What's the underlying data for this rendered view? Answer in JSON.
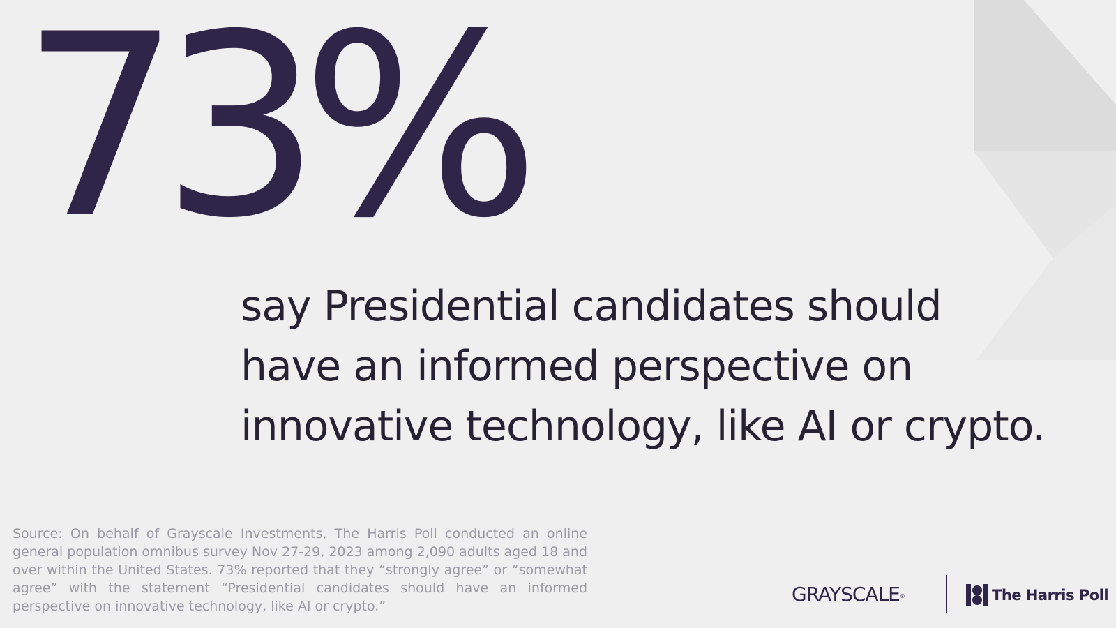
{
  "stat": {
    "value": "73%"
  },
  "headline": {
    "lines": [
      "say Presidential candidates should",
      "have an informed perspective on",
      "innovative technology, like AI or crypto."
    ]
  },
  "source_note": "Source: On behalf of Grayscale Investments, The Harris Poll conducted an online general population omnibus survey Nov 27-29, 2023 among 2,090 adults aged 18 and over within the United States. 73% reported that they “strongly agree” or “somewhat agree” with the statement “Presidential candidates should have an informed perspective on innovative technology, like AI or crypto.”",
  "logos": {
    "grayscale": "GRAYSCALE",
    "grayscale_mark": "®",
    "harris_poll": "The Harris Poll"
  },
  "colors": {
    "background": "#efefef",
    "brand_purple": "#2e2548",
    "body_text": "#262233",
    "footnote_text": "#9c9aa3",
    "shape_light": "#dcdcdc",
    "shape_lighter": "#e5e5e5"
  },
  "icons": [
    "harris-poll-mark-icon"
  ]
}
